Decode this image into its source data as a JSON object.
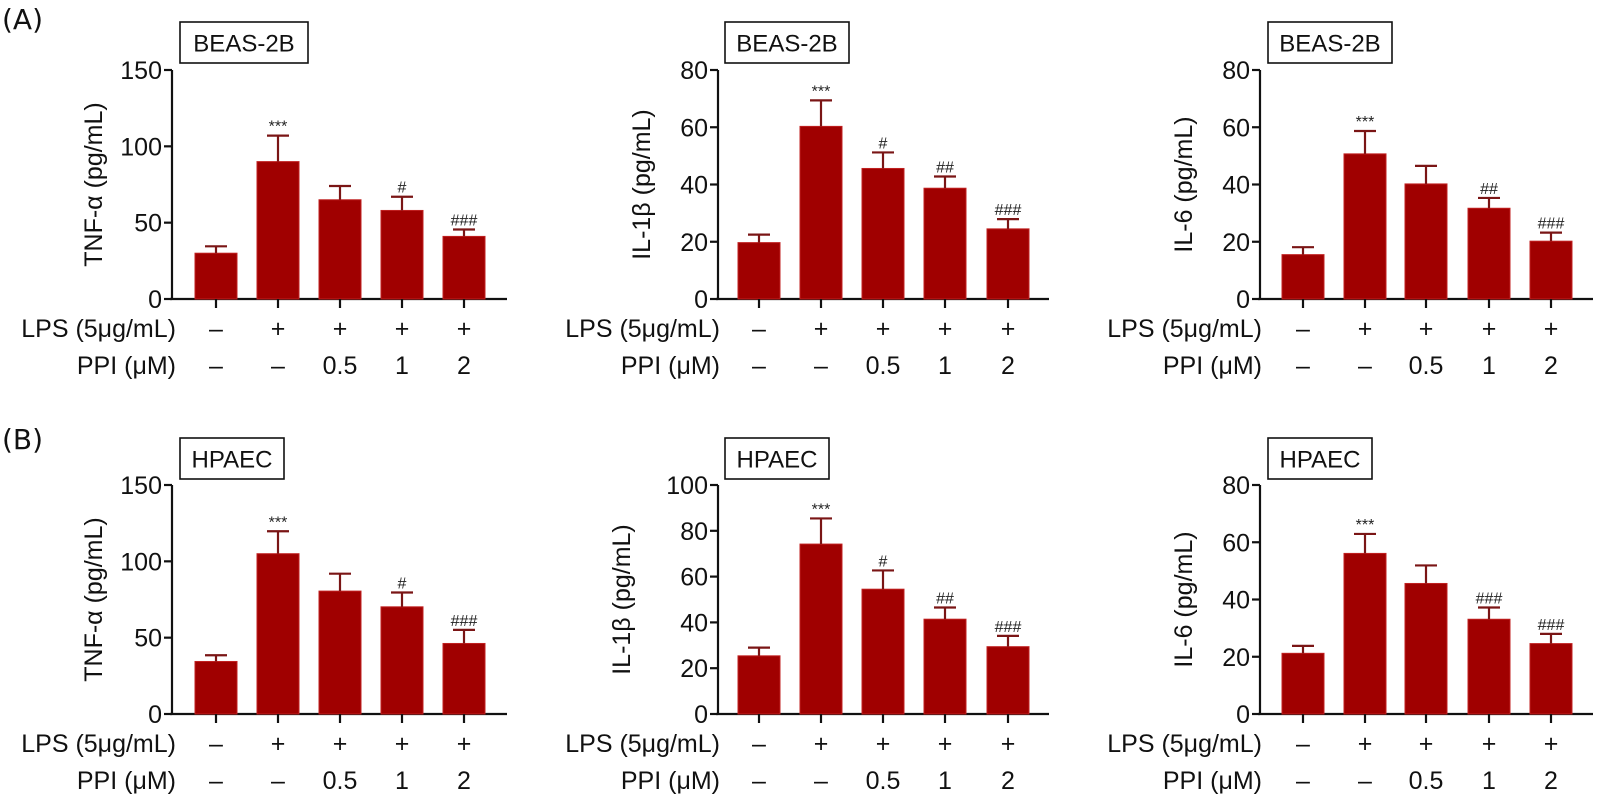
{
  "colors": {
    "bar": "#a00000",
    "error": "#7a1515",
    "axis": "#111111"
  },
  "row_labels": {
    "lps": "LPS (5μg/mL)",
    "ppi": "PPI (μM)"
  },
  "conditions": {
    "lps": [
      "–",
      "+",
      "+",
      "+",
      "+"
    ],
    "ppi": [
      "–",
      "–",
      "0.5",
      "1",
      "2"
    ]
  },
  "chart_data": [
    {
      "type": "bar",
      "panel": "A",
      "cell_line": "BEAS-2B",
      "title": "BEAS-2B",
      "xlabel": "",
      "ylabel": "TNF-α (pg/mL)",
      "ylim": [
        0,
        150
      ],
      "yticks": [
        0,
        50,
        100,
        150
      ],
      "categories": [
        "Control",
        "LPS",
        "LPS+PPI 0.5",
        "LPS+PPI 1",
        "LPS+PPI 2"
      ],
      "values": [
        30,
        90,
        65,
        58,
        41
      ],
      "errors": [
        4.5,
        17,
        9,
        9,
        4.5
      ],
      "significance": [
        "",
        "***",
        "",
        "#",
        "###"
      ]
    },
    {
      "type": "bar",
      "panel": "A",
      "cell_line": "BEAS-2B",
      "title": "BEAS-2B",
      "xlabel": "",
      "ylabel": "IL-1β (pg/mL)",
      "ylim": [
        0,
        80
      ],
      "yticks": [
        0,
        20,
        40,
        60,
        80
      ],
      "categories": [
        "Control",
        "LPS",
        "LPS+PPI 0.5",
        "LPS+PPI 1",
        "LPS+PPI 2"
      ],
      "values": [
        19.7,
        60.3,
        45.6,
        38.7,
        24.5
      ],
      "errors": [
        2.8,
        9.1,
        5.6,
        4.1,
        3.4
      ],
      "significance": [
        "",
        "***",
        "#",
        "##",
        "###"
      ]
    },
    {
      "type": "bar",
      "panel": "A",
      "cell_line": "BEAS-2B",
      "title": "BEAS-2B",
      "xlabel": "",
      "ylabel": "IL-6 (pg/mL)",
      "ylim": [
        0,
        80
      ],
      "yticks": [
        0,
        20,
        40,
        60,
        80
      ],
      "categories": [
        "Control",
        "LPS",
        "LPS+PPI 0.5",
        "LPS+PPI 1",
        "LPS+PPI 2"
      ],
      "values": [
        15.5,
        50.7,
        40.2,
        31.7,
        20.2
      ],
      "errors": [
        2.6,
        8.0,
        6.3,
        3.6,
        3.0
      ],
      "significance": [
        "",
        "***",
        "",
        "##",
        "###"
      ]
    },
    {
      "type": "bar",
      "panel": "B",
      "cell_line": "HPAEC",
      "title": "HPAEC",
      "xlabel": "",
      "ylabel": "TNF-α (pg/mL)",
      "ylim": [
        0,
        150
      ],
      "yticks": [
        0,
        50,
        100,
        150
      ],
      "categories": [
        "Control",
        "LPS",
        "LPS+PPI 0.5",
        "LPS+PPI 1",
        "LPS+PPI 2"
      ],
      "values": [
        34.4,
        105,
        80.5,
        70.2,
        46.2
      ],
      "errors": [
        4.1,
        14.7,
        11.4,
        9.4,
        8.9
      ],
      "significance": [
        "",
        "***",
        "",
        "#",
        "###"
      ]
    },
    {
      "type": "bar",
      "panel": "B",
      "cell_line": "HPAEC",
      "title": "HPAEC",
      "xlabel": "",
      "ylabel": "IL-1β (pg/mL)",
      "ylim": [
        0,
        100
      ],
      "yticks": [
        0,
        20,
        40,
        60,
        80,
        100
      ],
      "categories": [
        "Control",
        "LPS",
        "LPS+PPI 0.5",
        "LPS+PPI 1",
        "LPS+PPI 2"
      ],
      "values": [
        25.4,
        74.2,
        54.5,
        41.4,
        29.4
      ],
      "errors": [
        3.6,
        11.2,
        8.2,
        5.1,
        4.7
      ],
      "significance": [
        "",
        "***",
        "#",
        "##",
        "###"
      ]
    },
    {
      "type": "bar",
      "panel": "B",
      "cell_line": "HPAEC",
      "title": "HPAEC",
      "xlabel": "",
      "ylabel": "IL-6 (pg/mL)",
      "ylim": [
        0,
        80
      ],
      "yticks": [
        0,
        20,
        40,
        60,
        80
      ],
      "categories": [
        "Control",
        "LPS",
        "LPS+PPI 0.5",
        "LPS+PPI 1",
        "LPS+PPI 2"
      ],
      "values": [
        21.2,
        56.1,
        45.6,
        33.1,
        24.6
      ],
      "errors": [
        2.6,
        6.8,
        6.3,
        4.1,
        3.4
      ],
      "significance": [
        "",
        "***",
        "",
        "###",
        "###"
      ]
    }
  ],
  "panel_letters": [
    "(A)",
    "(B)"
  ]
}
